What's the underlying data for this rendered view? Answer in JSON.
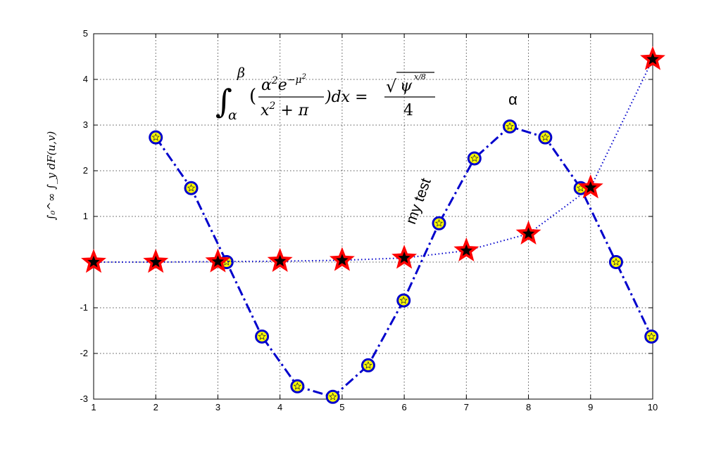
{
  "chart_data": {
    "type": "line",
    "title": "",
    "xlabel": "",
    "ylabel": "∫₀^∞ ∫_y dF(u,v)",
    "xlim": [
      1,
      10
    ],
    "ylim": [
      -3,
      5
    ],
    "xticks": [
      1,
      2,
      3,
      4,
      5,
      6,
      7,
      8,
      9,
      10
    ],
    "yticks": [
      -3,
      -2,
      -1,
      1,
      2,
      3,
      4,
      5
    ],
    "grid": true,
    "legend": "none",
    "series": [
      {
        "color": "#0000cc",
        "style": "dash-dot",
        "marker": "circle",
        "marker_face": "#ffff00",
        "x": [
          2.0,
          2.57,
          3.14,
          3.71,
          4.28,
          4.85,
          5.42,
          5.99,
          6.56,
          7.13,
          7.7,
          8.27,
          8.84,
          9.41,
          9.98
        ],
        "y": [
          2.73,
          1.62,
          0.0,
          -1.63,
          -2.72,
          -2.95,
          -2.26,
          -0.84,
          0.85,
          2.27,
          2.97,
          2.73,
          1.62,
          0.0,
          -1.63
        ]
      },
      {
        "color": "#0000cc",
        "style": "dotted",
        "marker": "star",
        "marker_face": "#000000",
        "marker_edge": "#ff0000",
        "x": [
          1,
          2,
          3,
          4,
          5,
          6,
          7,
          8,
          9,
          10
        ],
        "y": [
          0.0,
          0.0,
          0.01,
          0.02,
          0.04,
          0.09,
          0.25,
          0.62,
          1.63,
          4.44
        ]
      }
    ],
    "annotations": [
      {
        "id": "text-alpha",
        "text": "α",
        "x": 7.75,
        "y": 3.45
      },
      {
        "id": "text-mytest",
        "text": "my test",
        "x": 6.3,
        "y": 1.3,
        "rotation": -70
      }
    ],
    "equation": {
      "integral": "∫",
      "lower": "α",
      "upper": "β",
      "open": "(",
      "num_base": "α",
      "num_sup": "2",
      "num_e": "e",
      "num_exp": "−μ",
      "num_exp_sup": "2",
      "den_base": "x",
      "den_sup": "2",
      "den_rest": " + π",
      "close": ")dx =",
      "rhs_sqrt": "√",
      "rhs_psi": "ψ",
      "rhs_psi_exp": "x/8",
      "rhs_den": "4"
    }
  }
}
